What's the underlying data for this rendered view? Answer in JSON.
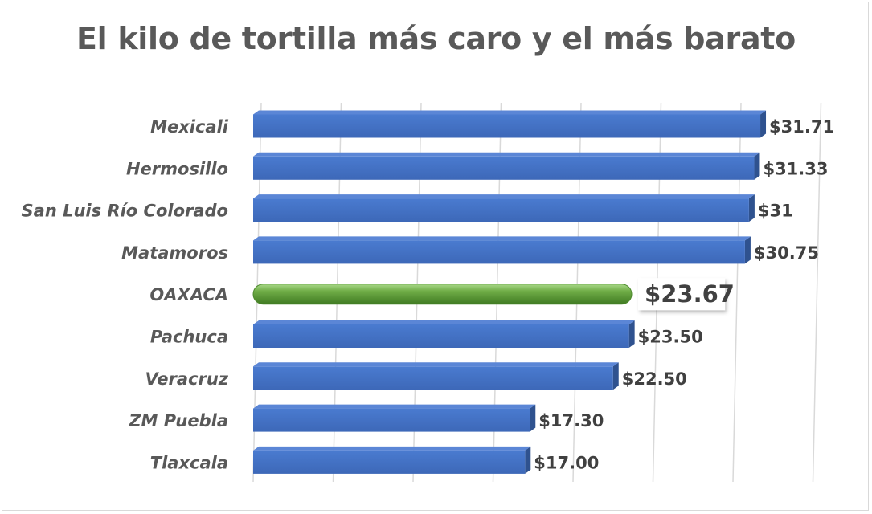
{
  "chart_data": {
    "type": "bar",
    "orientation": "horizontal",
    "title": "El kilo de tortilla más caro y el más barato",
    "categories": [
      "Mexicali",
      "Hermosillo",
      "San Luis Río Colorado",
      "Matamoros",
      "OAXACA",
      "Pachuca",
      "Veracruz",
      "ZM Puebla",
      "Tlaxcala"
    ],
    "values": [
      31.71,
      31.33,
      31,
      30.75,
      23.67,
      23.5,
      22.5,
      17.3,
      17.0
    ],
    "value_labels": [
      "$31.71",
      "$31.33",
      "$31",
      "$30.75",
      "$23.67",
      "$23.50",
      "$22.50",
      "$17.30",
      "$17.00"
    ],
    "highlight": "OAXACA",
    "xlim": [
      0,
      35
    ],
    "grid": true,
    "legend": "none",
    "colors": {
      "bar": "#4472C4",
      "bar_side": "#2F528F",
      "highlight": "#70AD47",
      "highlight_dark": "#4E8A2E",
      "grid": "#d9d9d9",
      "label": "#595959"
    }
  }
}
